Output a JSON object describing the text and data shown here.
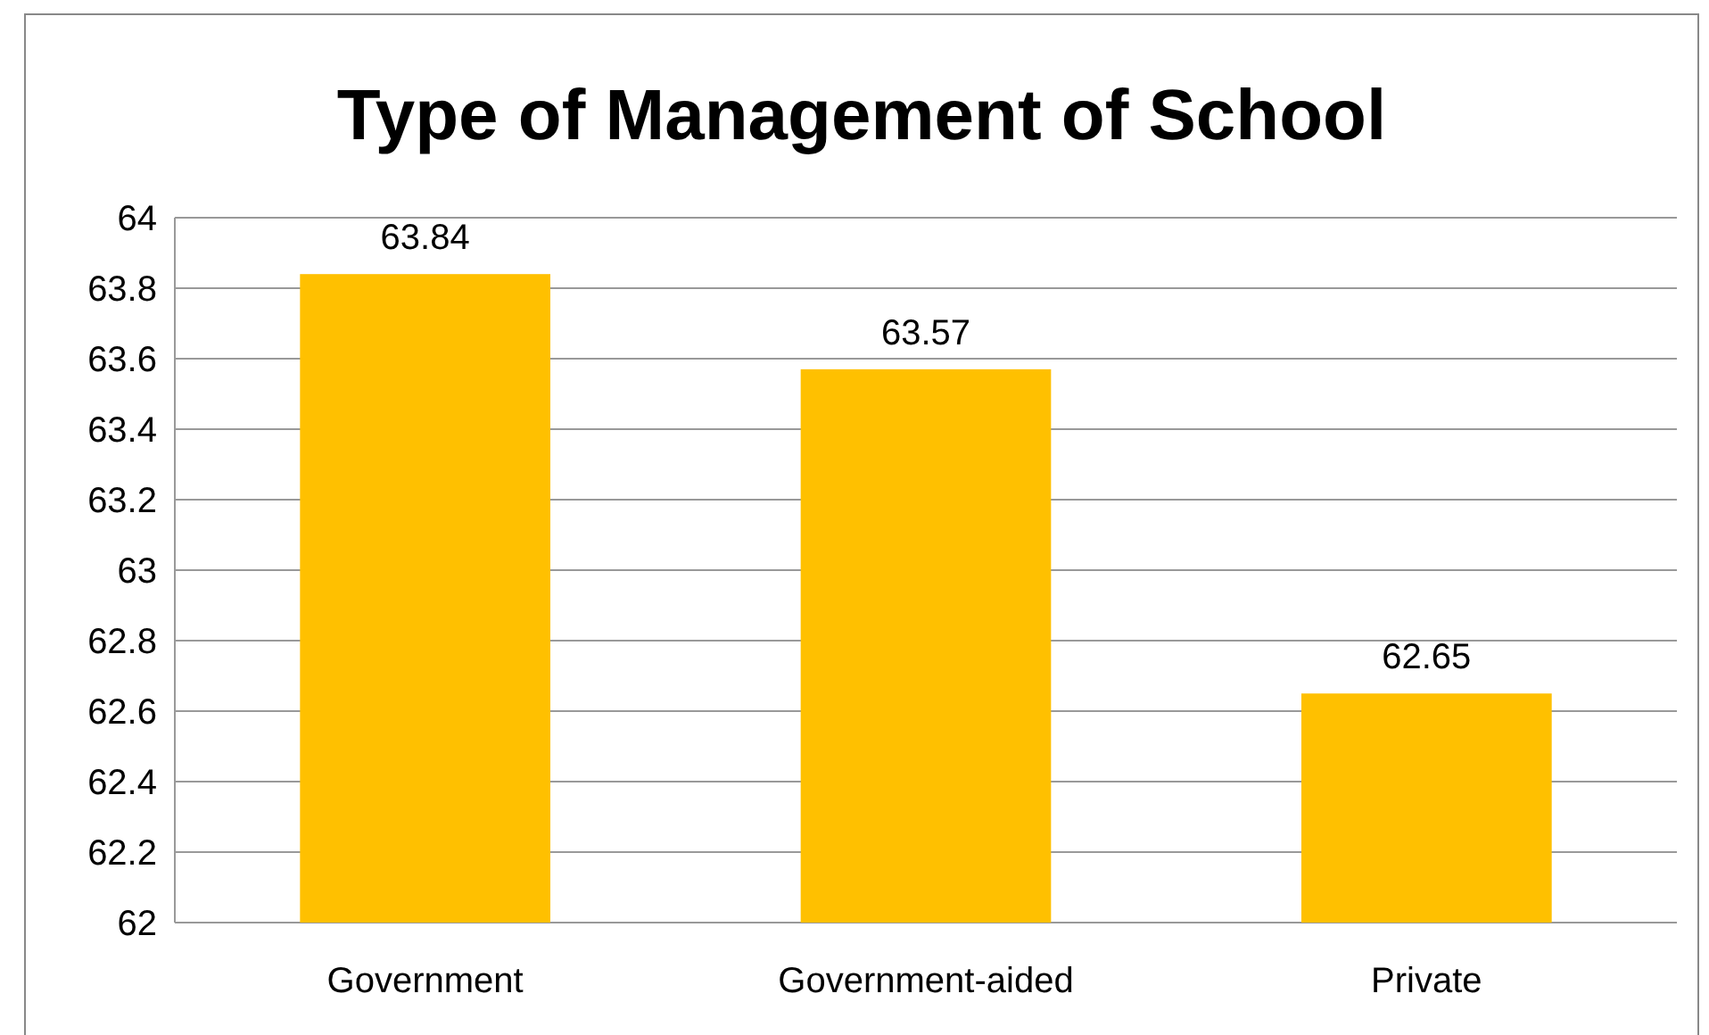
{
  "chart_data": {
    "type": "bar",
    "title": "Type of Management of School",
    "categories": [
      "Government",
      "Government-aided",
      "Private"
    ],
    "values": [
      63.84,
      63.57,
      62.65
    ],
    "color": "#ffc000",
    "ylim": [
      62,
      64
    ],
    "yticks": [
      62,
      62.2,
      62.4,
      62.6,
      62.8,
      63,
      63.2,
      63.4,
      63.6,
      63.8,
      64
    ],
    "grid": "y",
    "data_labels": true
  }
}
